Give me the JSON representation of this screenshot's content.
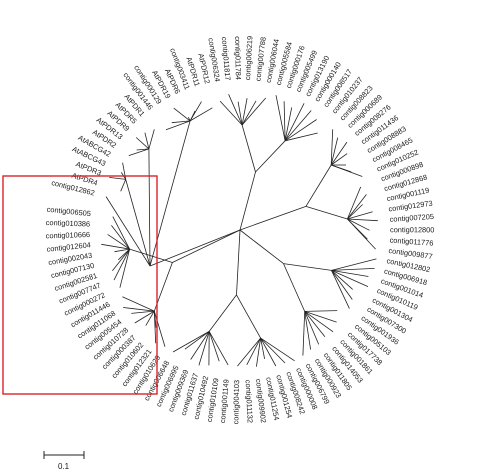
{
  "tree": {
    "highlight_color": "#d8232a",
    "line_color": "#222222",
    "leaves": [
      "contig012862",
      "AtPDR4",
      "AtPDR3",
      "AtABCG43",
      "AtABCG42",
      "AtPDR2",
      "AtPDR13",
      "AtPDR9",
      "AtPDR5",
      "AtPDR1",
      "contig001446",
      "contig000129",
      "AtPDR19",
      "AtPDR6",
      "contig003411",
      "AtPDR11",
      "AtPDR12",
      "contig006324",
      "contig011817",
      "contig011784",
      "contig006219",
      "contig007788",
      "contig006044",
      "contig005584",
      "contig000176",
      "contig005499",
      "contig013190",
      "contig000140",
      "contig008517",
      "contig010237",
      "contig008823",
      "contig000689",
      "contig008276",
      "contig011436",
      "contig008883",
      "contig008465",
      "contig010252",
      "contig000898",
      "contig012868",
      "contig001119",
      "contig012973",
      "contig007205",
      "contig012800",
      "contig011776",
      "contig009877",
      "contig012802",
      "contig006918",
      "contig001014",
      "contig010119",
      "contig001304",
      "contig007300",
      "contig001936",
      "contig005103",
      "contig017738",
      "contig001861",
      "contig014053",
      "contig011805",
      "contig000923",
      "contig006799",
      "contig000008",
      "contig008242",
      "contig001254",
      "contig011254",
      "contig009902",
      "contig011132",
      "contig004103",
      "contig001149",
      "contig010109",
      "contig010492",
      "contig011637",
      "contig009369",
      "contig006995",
      "contig006648",
      "contig010629",
      "contig012321",
      "contig010602",
      "contig000387",
      "contig010728",
      "contig005454",
      "contig011068",
      "contig011446",
      "contig000272",
      "contig007747",
      "contig002581",
      "contig007130",
      "contig002043",
      "contig012604",
      "contig010666",
      "contig010386",
      "contig006505"
    ]
  },
  "scale_bar": {
    "label": "0.1"
  }
}
